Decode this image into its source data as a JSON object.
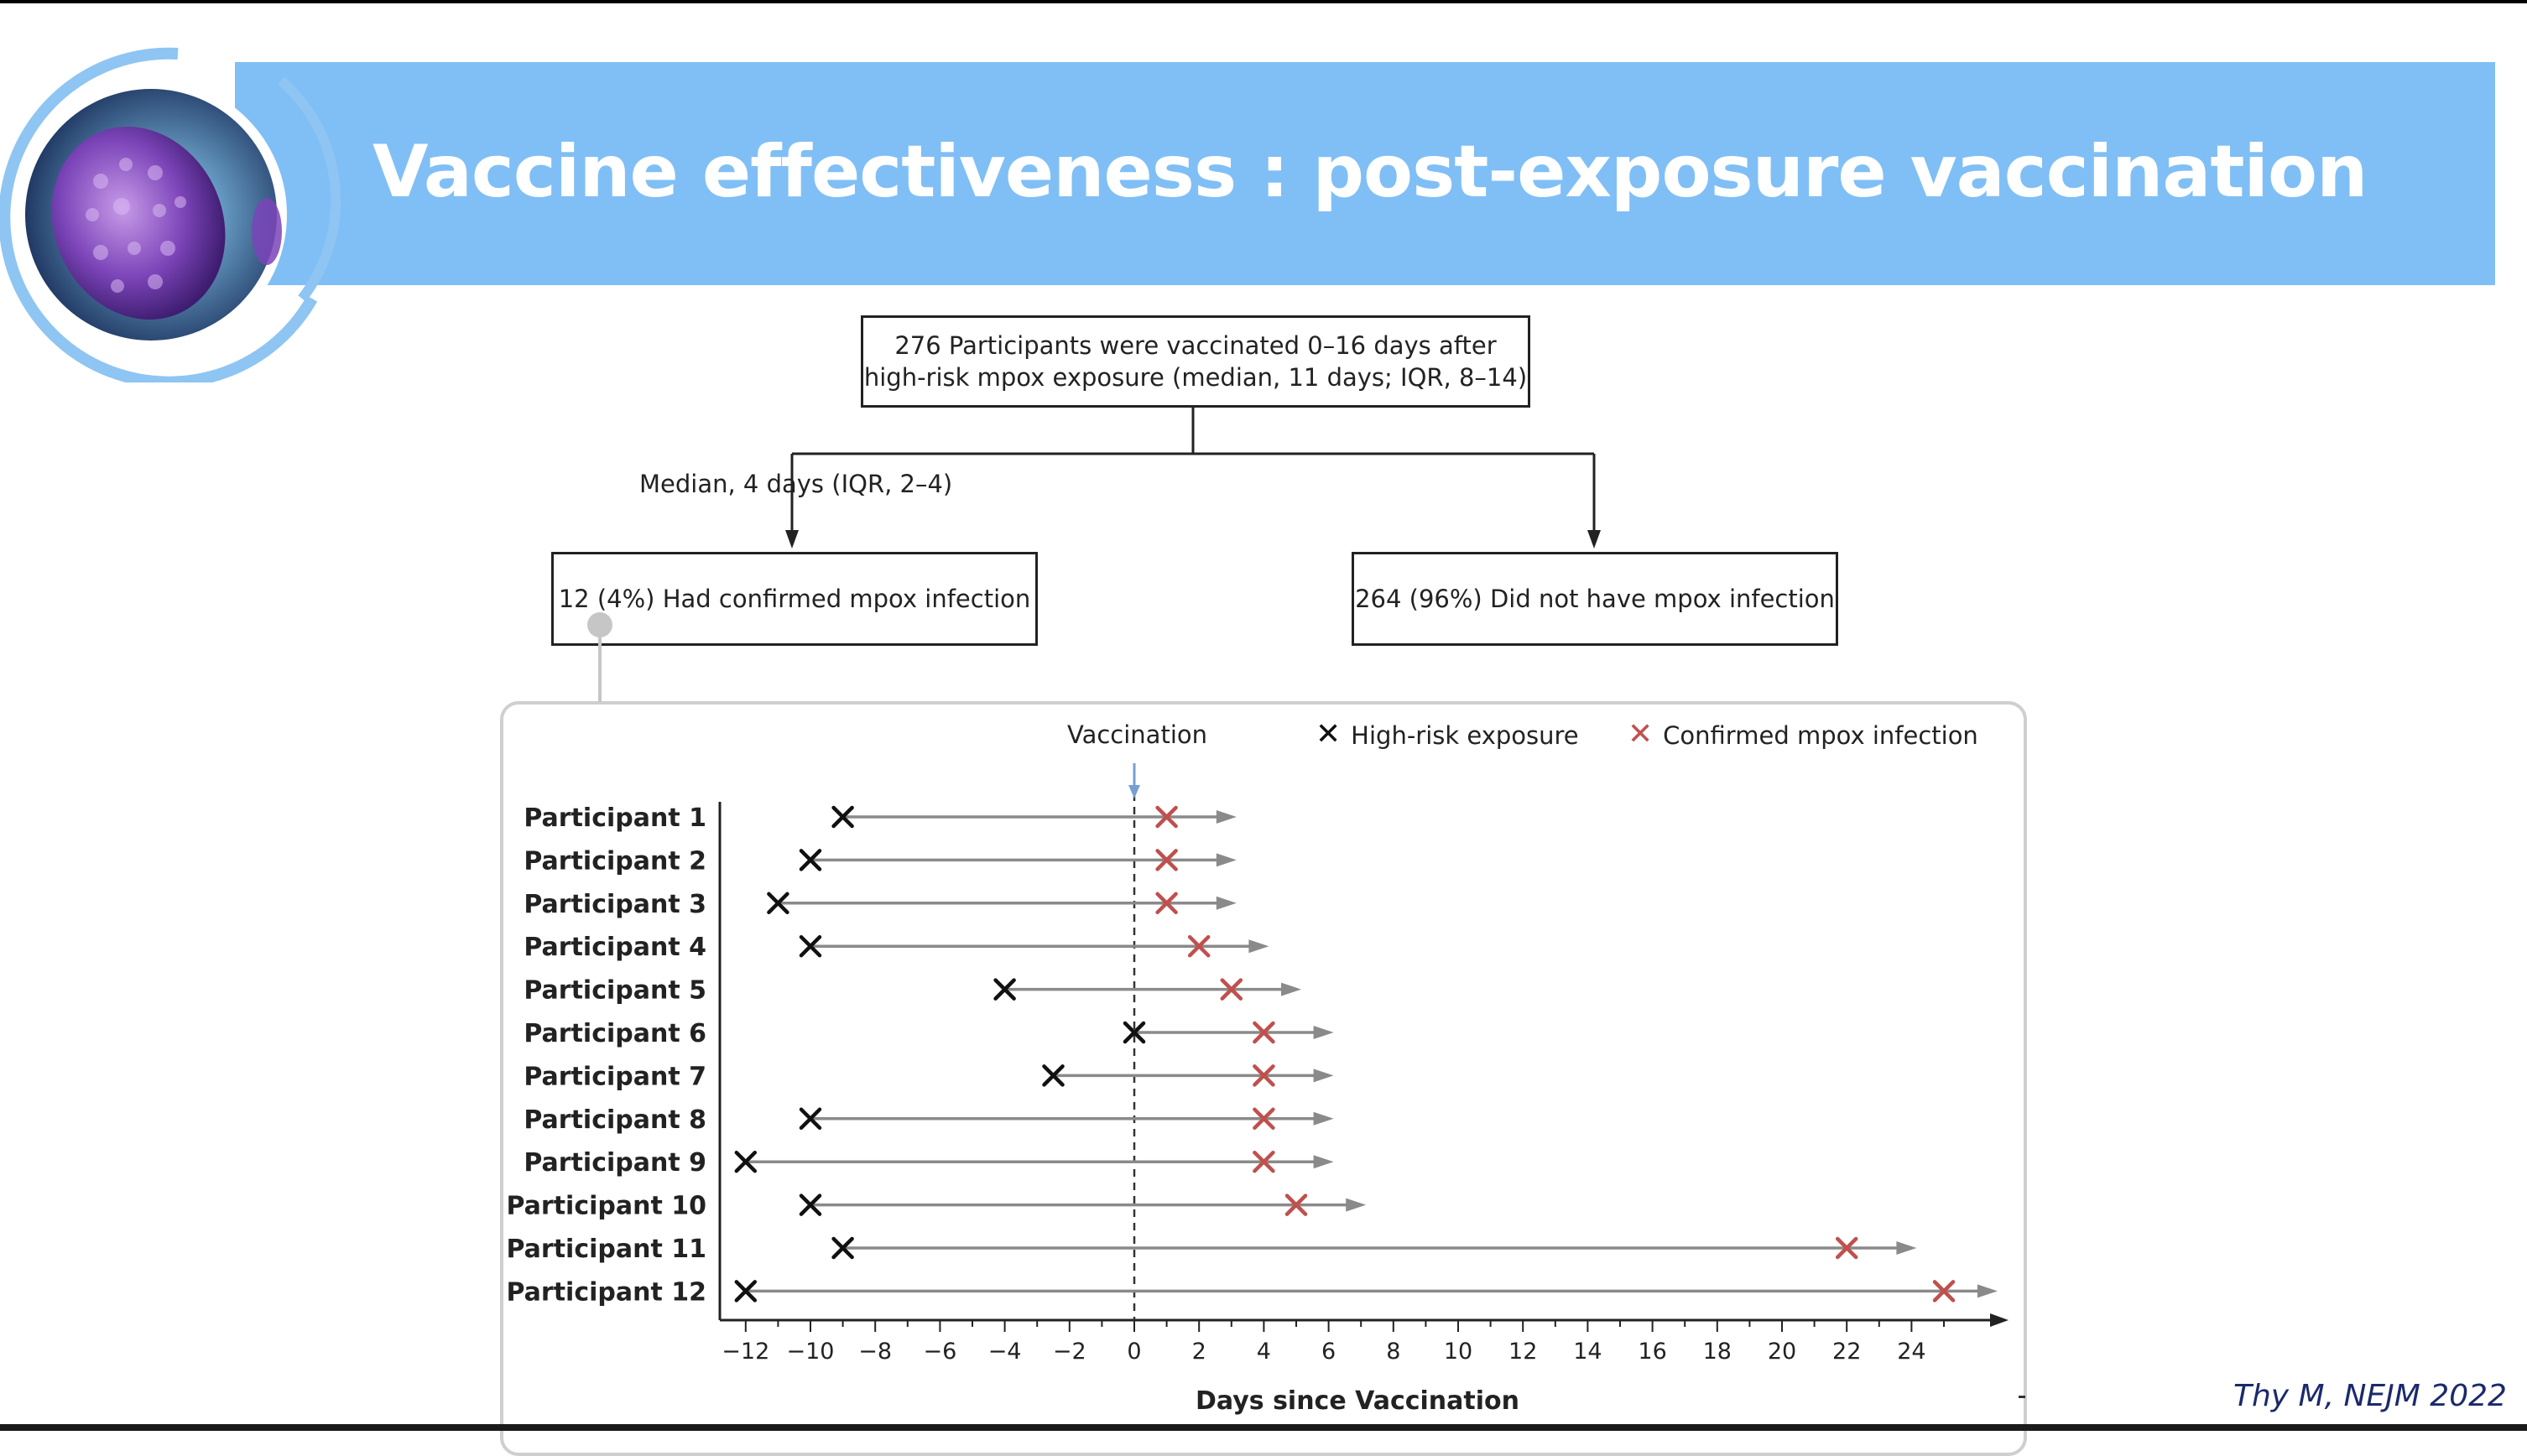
{
  "slide": {
    "title": "Vaccine effectiveness : post-exposure vaccination",
    "citation": "Thy M, NEJM 2022",
    "banner_color": "#80bff5"
  },
  "flow": {
    "top_box": "276 Participants were vaccinated 0–16 days after high-risk mpox exposure (median, 11 days; IQR, 8–14)",
    "branch_label": "Median, 4 days (IQR, 2–4)",
    "left_box": "12 (4%) Had confirmed mpox infection",
    "right_box": "264 (96%) Did not have mpox infection"
  },
  "legend": {
    "vaccination": "Vaccination",
    "exposure": "High-risk exposure",
    "infection": "Confirmed mpox infection",
    "exposure_color": "#111111",
    "infection_color": "#c0504d",
    "vaccination_color": "#7a9ed4"
  },
  "chart_data": {
    "type": "scatter",
    "xlabel": "Days since Vaccination",
    "ylabel": "",
    "xlim": [
      -12.8,
      26.5
    ],
    "xticks": [
      -12,
      -10,
      -8,
      -6,
      -4,
      -2,
      0,
      2,
      4,
      6,
      8,
      10,
      12,
      14,
      16,
      18,
      20,
      22,
      24
    ],
    "vaccination_day": 0,
    "participants": [
      {
        "label": "Participant 1",
        "exposure": -9,
        "infection": 1,
        "arrow_end": 3
      },
      {
        "label": "Participant 2",
        "exposure": -10,
        "infection": 1,
        "arrow_end": 3
      },
      {
        "label": "Participant 3",
        "exposure": -11,
        "infection": 1,
        "arrow_end": 3
      },
      {
        "label": "Participant 4",
        "exposure": -10,
        "infection": 2,
        "arrow_end": 4
      },
      {
        "label": "Participant 5",
        "exposure": -4,
        "infection": 3,
        "arrow_end": 5
      },
      {
        "label": "Participant 6",
        "exposure": 0,
        "infection": 4,
        "arrow_end": 6
      },
      {
        "label": "Participant 7",
        "exposure": -2.5,
        "infection": 4,
        "arrow_end": 6
      },
      {
        "label": "Participant 8",
        "exposure": -10,
        "infection": 4,
        "arrow_end": 6
      },
      {
        "label": "Participant 9",
        "exposure": -12,
        "infection": 4,
        "arrow_end": 6
      },
      {
        "label": "Participant 10",
        "exposure": -10,
        "infection": 5,
        "arrow_end": 7
      },
      {
        "label": "Participant 11",
        "exposure": -9,
        "infection": 22,
        "arrow_end": 24
      },
      {
        "label": "Participant 12",
        "exposure": -12,
        "infection": 25,
        "arrow_end": 26.5
      }
    ]
  }
}
